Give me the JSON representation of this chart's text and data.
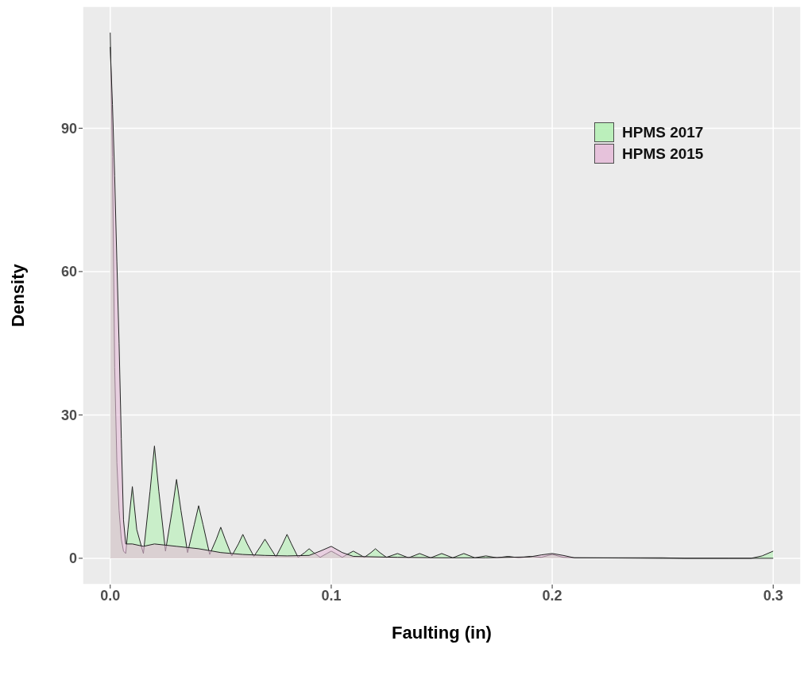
{
  "chart_data": {
    "type": "area",
    "xlabel": "Faulting (in)",
    "ylabel": "Density",
    "xlim": [
      -0.0125,
      0.3125
    ],
    "ylim": [
      -5.5,
      115.5
    ],
    "xticks": [
      {
        "value": 0,
        "label": "0.0"
      },
      0.1,
      0.2,
      0.3
    ],
    "yticks": [
      0,
      30,
      60,
      90
    ],
    "grid": true,
    "legend": "top right",
    "series": [
      {
        "name": "HPMS 2017",
        "color": "#b3f0b3",
        "x": [
          0,
          0.001,
          0.002,
          0.003,
          0.004,
          0.005,
          0.006,
          0.007,
          0.008,
          0.01,
          0.012,
          0.015,
          0.018,
          0.02,
          0.022,
          0.025,
          0.028,
          0.03,
          0.032,
          0.035,
          0.038,
          0.04,
          0.042,
          0.045,
          0.048,
          0.05,
          0.052,
          0.055,
          0.058,
          0.06,
          0.062,
          0.065,
          0.068,
          0.07,
          0.072,
          0.075,
          0.078,
          0.08,
          0.082,
          0.085,
          0.088,
          0.09,
          0.092,
          0.095,
          0.098,
          0.1,
          0.102,
          0.105,
          0.108,
          0.11,
          0.112,
          0.115,
          0.118,
          0.12,
          0.122,
          0.125,
          0.13,
          0.135,
          0.14,
          0.145,
          0.15,
          0.155,
          0.16,
          0.165,
          0.17,
          0.175,
          0.18,
          0.185,
          0.19,
          0.195,
          0.2,
          0.205,
          0.21,
          0.22,
          0.23,
          0.24,
          0.25,
          0.26,
          0.28,
          0.29,
          0.295,
          0.3
        ],
        "values": [
          110,
          84,
          40,
          20,
          10,
          4,
          1.5,
          1,
          6,
          15,
          6,
          1,
          14,
          23.5,
          14,
          1.5,
          10,
          16.5,
          10,
          1.2,
          7,
          11,
          7,
          0.8,
          4,
          6.5,
          4,
          0.5,
          3,
          5,
          3,
          0.4,
          2.5,
          4,
          2.5,
          0.3,
          3,
          5,
          3,
          0.2,
          1.2,
          2,
          1.2,
          0.2,
          1,
          1.5,
          1,
          0.2,
          1,
          1.5,
          1,
          0.2,
          1.2,
          2,
          1.2,
          0.2,
          1,
          0.1,
          1,
          0.1,
          1,
          0.1,
          1,
          0.1,
          0.5,
          0.1,
          0.4,
          0.1,
          0.4,
          0.2,
          0.8,
          0.2,
          0.1,
          0.1,
          0.1,
          0.1,
          0.1,
          0,
          0,
          0,
          0.5,
          1.5
        ]
      },
      {
        "name": "HPMS 2015",
        "color": "#e6bcd9",
        "x": [
          0,
          0.001,
          0.002,
          0.003,
          0.004,
          0.005,
          0.006,
          0.007,
          0.01,
          0.015,
          0.02,
          0.03,
          0.04,
          0.05,
          0.06,
          0.07,
          0.08,
          0.09,
          0.095,
          0.1,
          0.105,
          0.11,
          0.13,
          0.15,
          0.17,
          0.19,
          0.195,
          0.2,
          0.205,
          0.21,
          0.25,
          0.3
        ],
        "values": [
          107,
          95,
          80,
          62,
          45,
          25,
          8,
          3,
          3,
          2.5,
          3,
          2.5,
          2,
          1.2,
          0.8,
          0.6,
          0.5,
          0.6,
          1.5,
          2.5,
          1.2,
          0.4,
          0.2,
          0.1,
          0.1,
          0.3,
          0.7,
          1,
          0.6,
          0.1,
          0,
          0
        ]
      }
    ]
  }
}
